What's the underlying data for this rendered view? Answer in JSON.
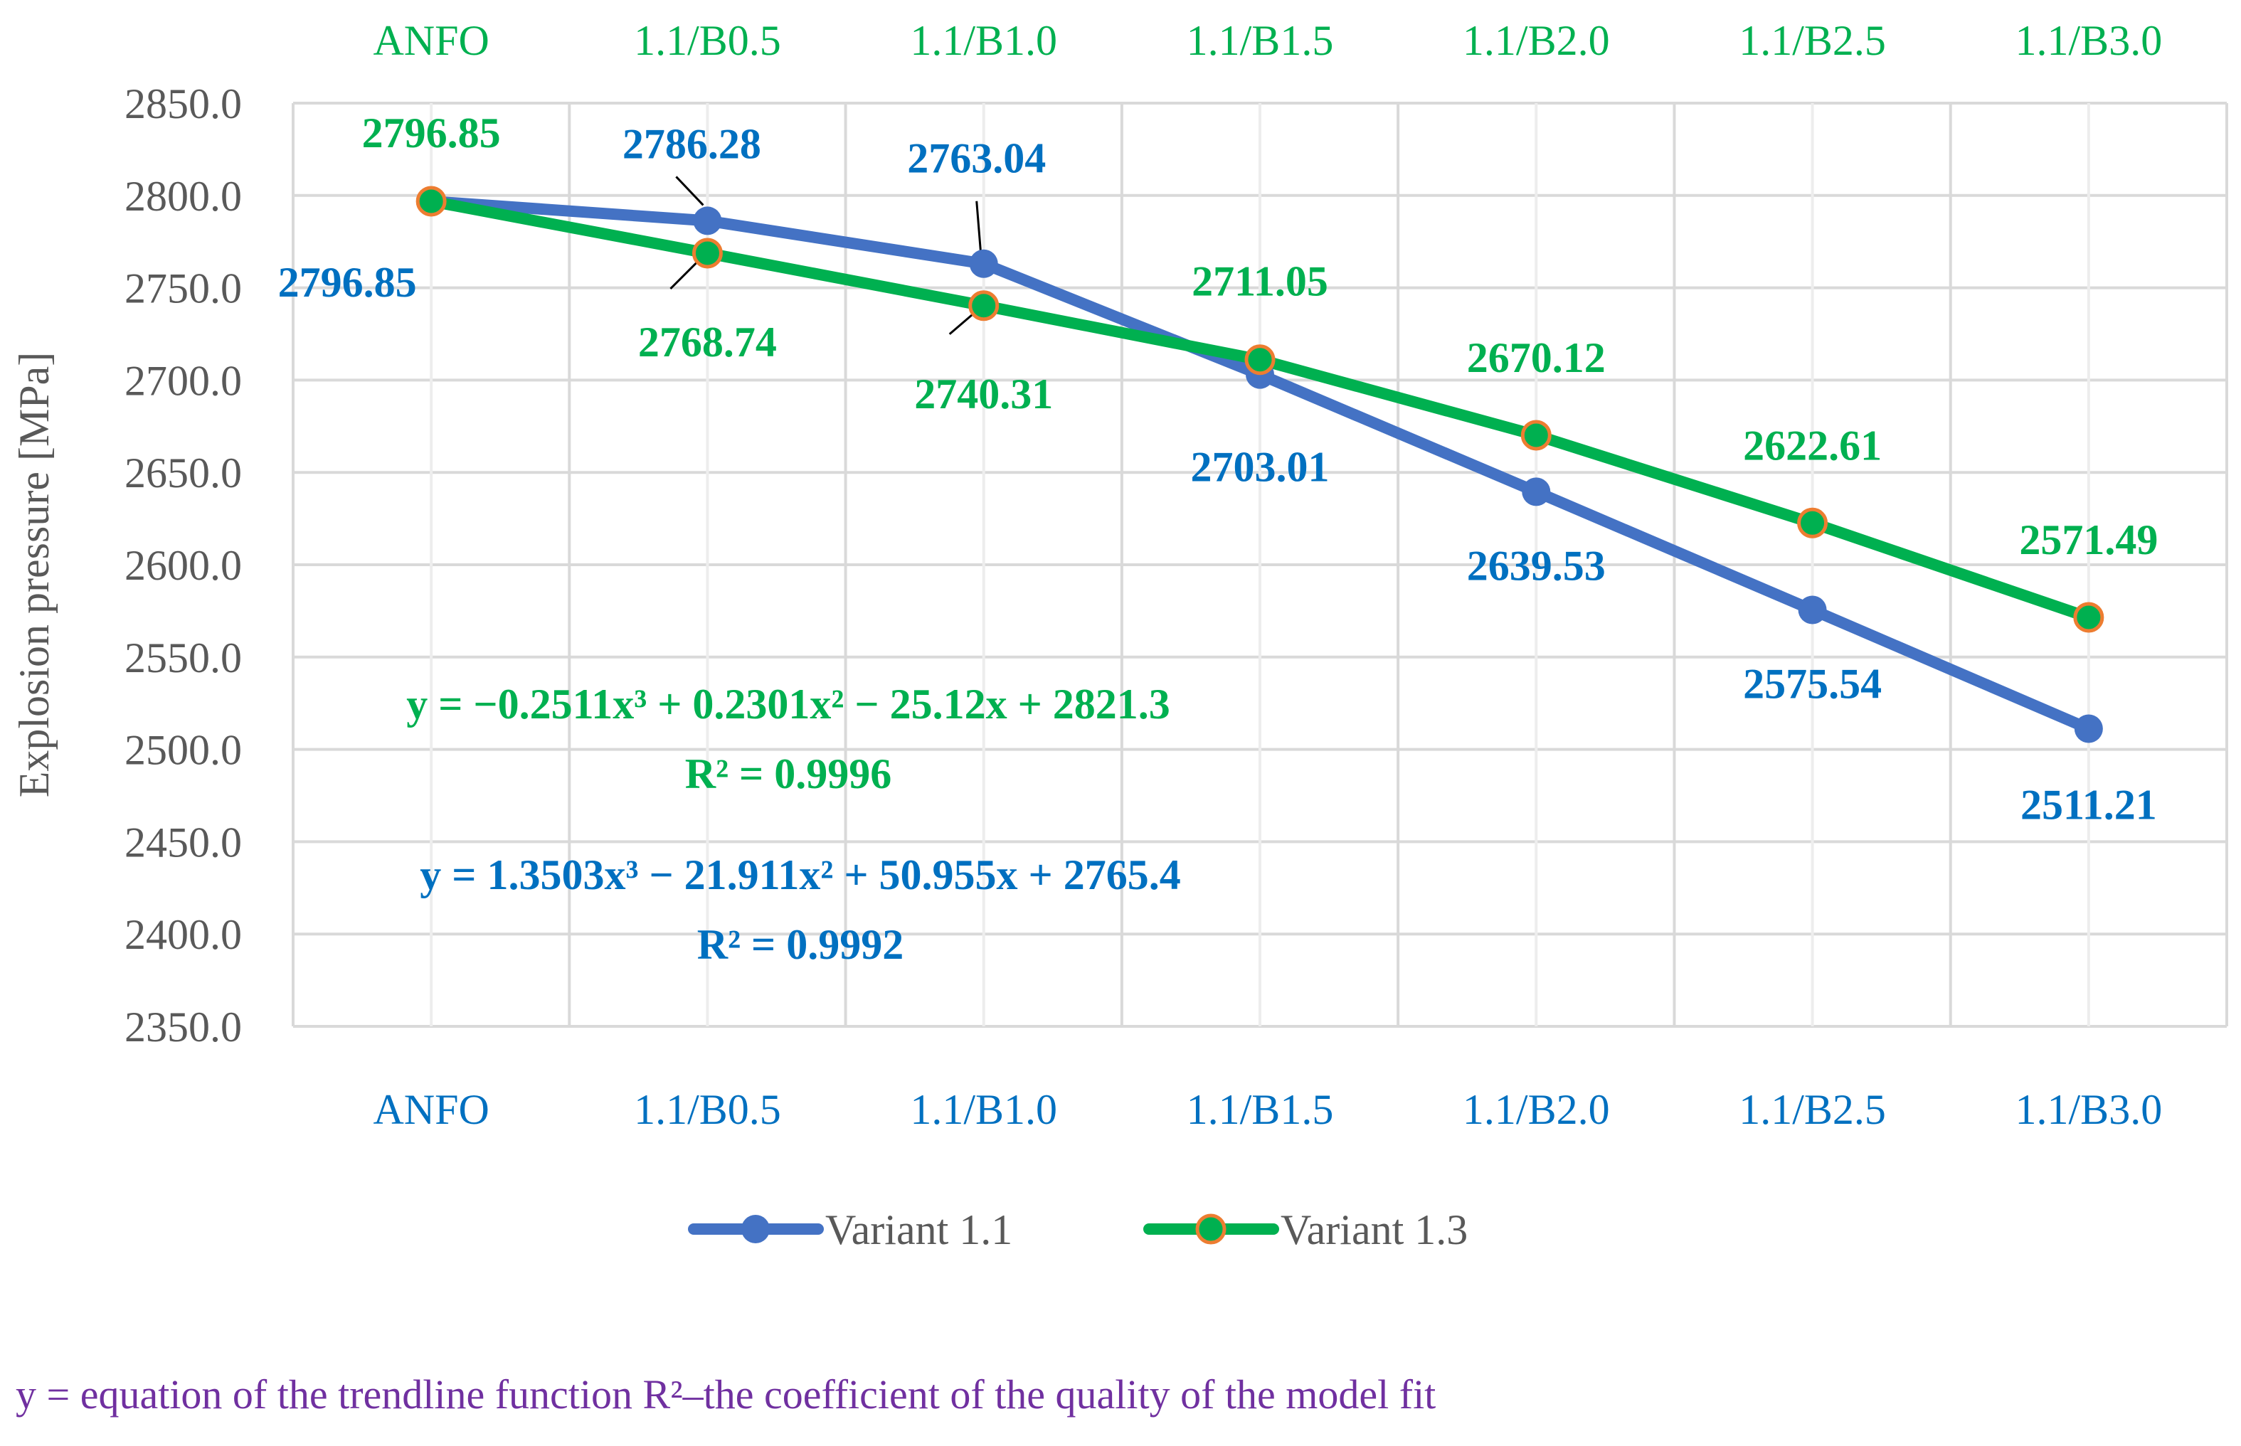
{
  "chart_data": {
    "type": "line",
    "categories": [
      "ANFO",
      "1.1/B0.5",
      "1.1/B1.0",
      "1.1/B1.5",
      "1.1/B2.0",
      "1.1/B2.5",
      "1.1/B3.0"
    ],
    "ylabel": "Explosion pressure [MPa]",
    "ylim": [
      2350,
      2850
    ],
    "yticks": [
      "2350.0",
      "2400.0",
      "2450.0",
      "2500.0",
      "2550.0",
      "2600.0",
      "2650.0",
      "2700.0",
      "2750.0",
      "2800.0",
      "2850.0"
    ],
    "grid": true,
    "legend_position": "bottom",
    "series": [
      {
        "name": "Variant 1.1",
        "color": "#4472C4",
        "label_color": "#0070C0",
        "marker_fill": "#4472C4",
        "values": [
          2796.85,
          2786.28,
          2763.04,
          2703.01,
          2639.53,
          2575.54,
          2511.21
        ],
        "labels": [
          "2796.85",
          "2786.28",
          "2763.04",
          "2703.01",
          "2639.53",
          "2575.54",
          "2511.21"
        ],
        "equation": "y = 1.3503x³ − 21.911x² + 50.955x + 2765.4",
        "r2": "R² = 0.9992"
      },
      {
        "name": "Variant 1.3",
        "color": "#00B050",
        "label_color": "#00B050",
        "marker_fill": "#00B050",
        "marker_edge": "#ED7D31",
        "values": [
          2796.85,
          2768.74,
          2740.31,
          2711.05,
          2670.12,
          2622.61,
          2571.49
        ],
        "labels": [
          "2796.85",
          "2768.74",
          "2740.31",
          "2711.05",
          "2670.12",
          "2622.61",
          "2571.49"
        ],
        "equation": "y = −0.2511x³ + 0.2301x² − 25.12x + 2821.3",
        "r2": "R² = 0.9996"
      }
    ],
    "footnote": "y = equation of the trendline function R²–the coefficient of the quality of the model fit"
  }
}
